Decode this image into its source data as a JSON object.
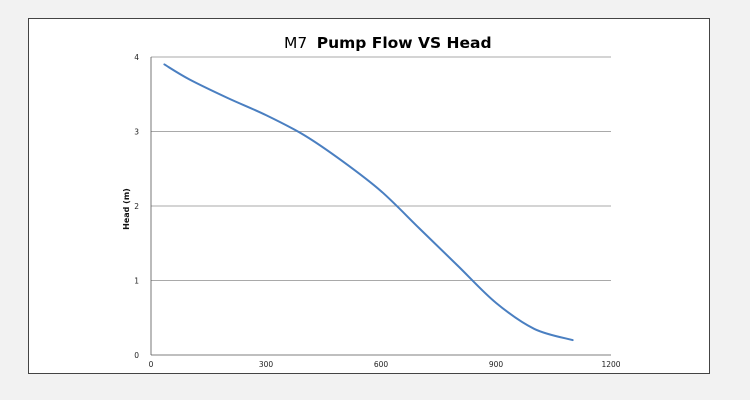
{
  "chart_data": {
    "type": "line",
    "title_model": "M7",
    "title_main": "Pump Flow VS Head",
    "xlabel": "",
    "ylabel": "Head (m)",
    "xlim": [
      0,
      1200
    ],
    "ylim": [
      0,
      4
    ],
    "x_ticks": [
      "0",
      "300",
      "600",
      "900",
      "1200"
    ],
    "y_ticks": [
      "0",
      "1",
      "2",
      "3",
      "4"
    ],
    "grid": "horizontal",
    "line_color": "#4a7fc1",
    "series": [
      {
        "x": [
          35,
          100,
          200,
          300,
          400,
          500,
          600,
          700,
          800,
          900,
          1000,
          1100
        ],
        "values": [
          3.9,
          3.7,
          3.45,
          3.22,
          2.95,
          2.6,
          2.2,
          1.7,
          1.2,
          0.7,
          0.35,
          0.2
        ]
      }
    ]
  }
}
